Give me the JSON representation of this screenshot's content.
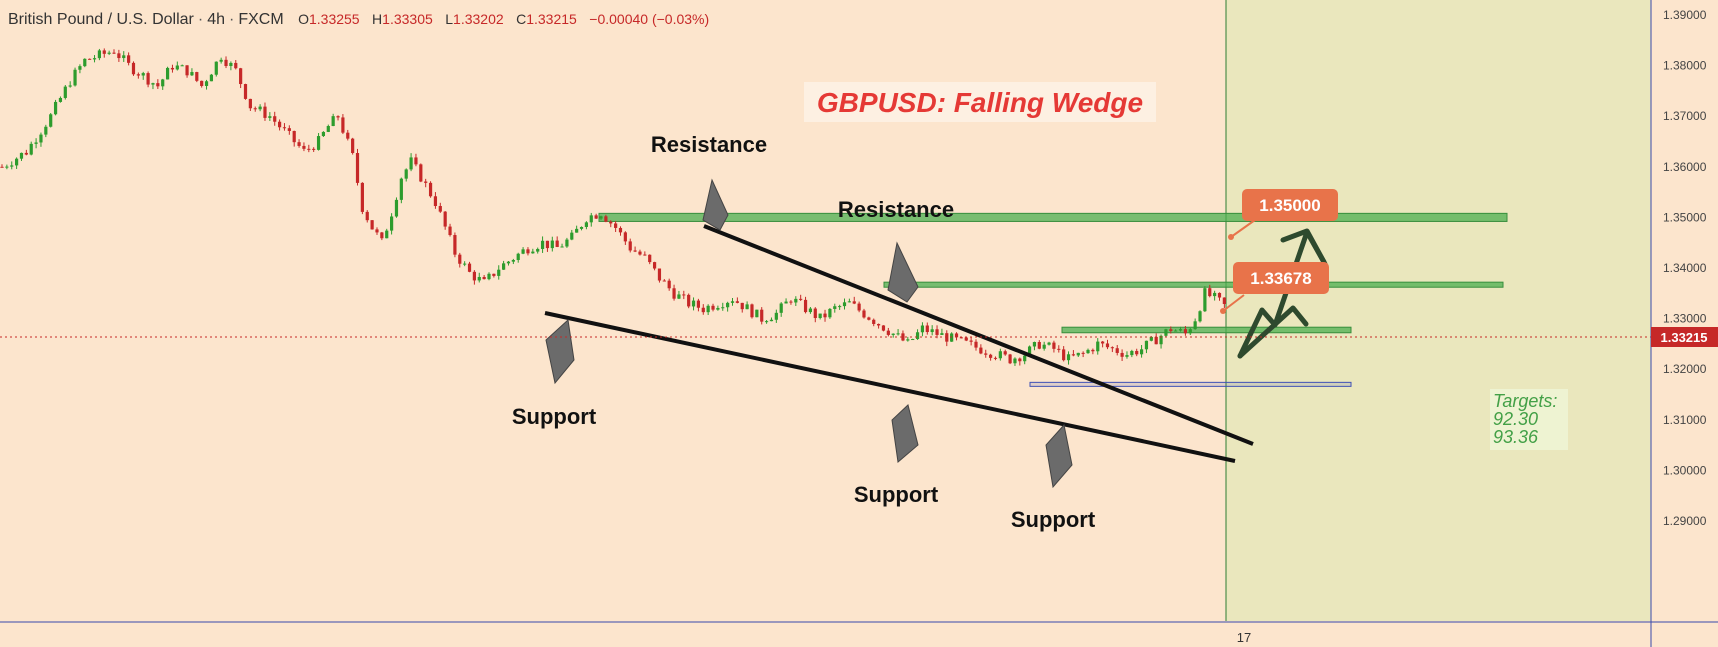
{
  "header": {
    "symbol": "British Pound / U.S. Dollar",
    "interval": "4h",
    "source": "FXCM",
    "o_label": "O",
    "open": "1.33255",
    "h_label": "H",
    "high": "1.33305",
    "l_label": "L",
    "low": "1.33202",
    "c_label": "C",
    "close": "1.33215",
    "change": "−0.00040 (−0.03%)"
  },
  "colors": {
    "background": "#fce5cd",
    "projection_bg": "#eae7bd",
    "up_candle": "#2d9c2d",
    "down_candle": "#c62828",
    "zone_fill": "#4caf50",
    "callout": "#e8734a",
    "title_text": "#e53935",
    "target_text": "#43a047"
  },
  "chart_data": {
    "type": "candlestick",
    "title": "GBPUSD: Falling Wedge",
    "y_axis": {
      "ticks": [
        "1.39000",
        "1.38000",
        "1.37000",
        "1.36000",
        "1.35000",
        "1.34000",
        "1.33000",
        "1.32000",
        "1.31000",
        "1.30000",
        "1.29000"
      ],
      "range": [
        1.2835,
        1.3923
      ]
    },
    "x_axis": {
      "ticks": [
        "17"
      ]
    },
    "current_price": "1.33215",
    "path": [
      [
        0,
        1.36
      ],
      [
        5,
        1.363
      ],
      [
        10,
        1.37
      ],
      [
        14,
        1.377
      ],
      [
        17,
        1.381
      ],
      [
        20,
        1.382
      ],
      [
        23,
        1.383
      ],
      [
        26,
        1.38
      ],
      [
        29,
        1.378
      ],
      [
        32,
        1.376
      ],
      [
        35,
        1.38
      ],
      [
        38,
        1.379
      ],
      [
        41,
        1.376
      ],
      [
        45,
        1.382
      ],
      [
        48,
        1.379
      ],
      [
        51,
        1.372
      ],
      [
        55,
        1.37
      ],
      [
        59,
        1.366
      ],
      [
        62,
        1.363
      ],
      [
        65,
        1.365
      ],
      [
        67,
        1.368
      ],
      [
        69,
        1.37
      ],
      [
        72,
        1.362
      ],
      [
        74,
        1.352
      ],
      [
        76,
        1.348
      ],
      [
        78,
        1.345
      ],
      [
        80,
        1.351
      ],
      [
        82,
        1.358
      ],
      [
        84,
        1.361
      ],
      [
        86,
        1.358
      ],
      [
        89,
        1.353
      ],
      [
        91,
        1.348
      ],
      [
        93,
        1.343
      ],
      [
        96,
        1.339
      ],
      [
        99,
        1.337
      ],
      [
        102,
        1.34
      ],
      [
        105,
        1.342
      ],
      [
        108,
        1.344
      ],
      [
        111,
        1.345
      ],
      [
        114,
        1.344
      ],
      [
        117,
        1.346
      ],
      [
        120,
        1.35
      ],
      [
        123,
        1.351
      ],
      [
        126,
        1.348
      ],
      [
        129,
        1.344
      ],
      [
        132,
        1.342
      ],
      [
        135,
        1.338
      ],
      [
        138,
        1.335
      ],
      [
        141,
        1.333
      ],
      [
        144,
        1.332
      ],
      [
        147,
        1.333
      ],
      [
        150,
        1.334
      ],
      [
        153,
        1.332
      ],
      [
        156,
        1.33
      ],
      [
        159,
        1.331
      ],
      [
        162,
        1.334
      ],
      [
        165,
        1.332
      ],
      [
        168,
        1.33
      ],
      [
        171,
        1.332
      ],
      [
        174,
        1.333
      ],
      [
        177,
        1.331
      ],
      [
        180,
        1.329
      ],
      [
        183,
        1.327
      ],
      [
        186,
        1.325
      ],
      [
        189,
        1.328
      ],
      [
        192,
        1.327
      ],
      [
        195,
        1.326
      ],
      [
        198,
        1.325
      ],
      [
        201,
        1.324
      ],
      [
        204,
        1.323
      ],
      [
        207,
        1.322
      ],
      [
        210,
        1.323
      ],
      [
        213,
        1.325
      ],
      [
        216,
        1.324
      ],
      [
        219,
        1.322
      ],
      [
        222,
        1.323
      ],
      [
        225,
        1.325
      ],
      [
        228,
        1.324
      ],
      [
        231,
        1.323
      ],
      [
        234,
        1.324
      ],
      [
        237,
        1.326
      ],
      [
        240,
        1.328
      ],
      [
        243,
        1.327
      ],
      [
        245,
        1.33
      ],
      [
        247,
        1.335
      ],
      [
        249,
        1.334
      ],
      [
        251,
        1.3325
      ]
    ],
    "zones": [
      {
        "y_top": 1.3508,
        "y_bottom": 1.3492
      },
      {
        "y_top": 1.3372,
        "y_bottom": 1.3362
      },
      {
        "y_top": 1.3283,
        "y_bottom": 1.3272
      },
      {
        "y_top": 1.3174,
        "y_bottom": 1.3168
      }
    ],
    "callouts": [
      {
        "label": "1.35000",
        "value": 1.35
      },
      {
        "label": "1.33678",
        "value": 1.33678
      }
    ],
    "annotations": {
      "resistance_1": "Resistance",
      "resistance_2": "Resistance",
      "support_1": "Support",
      "support_2": "Support",
      "support_3": "Support"
    },
    "targets": {
      "label": "Targets:",
      "values": [
        "92.30",
        "93.36"
      ]
    }
  }
}
